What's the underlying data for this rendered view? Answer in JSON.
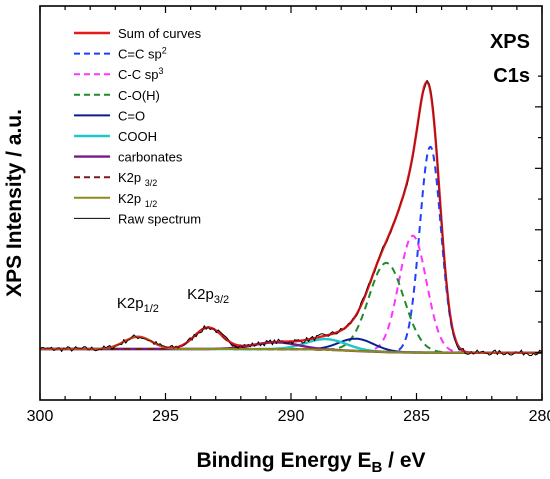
{
  "chart_data": {
    "type": "line",
    "title": "",
    "annotations": [
      "XPS",
      "C1s"
    ],
    "xlabel": "Binding Energy  E",
    "xlabel_sub": "B",
    "xlabel_unit": " / eV",
    "ylabel": "XPS Intensity / a.u.",
    "xlim": [
      300,
      280
    ],
    "x_ticks": [
      "300",
      "295",
      "290",
      "285",
      "280"
    ],
    "x_tick_values": [
      300,
      295,
      290,
      285,
      280
    ],
    "ylim": [
      0,
      1.0
    ],
    "y_ticks": [
      0,
      0.2,
      0.4,
      0.6,
      0.8
    ],
    "y_tick_labels_shown": false,
    "grid": false,
    "legend_position": "top-left",
    "peak_labels": [
      {
        "base": "K2p",
        "sub": "1/2",
        "x": 296.1,
        "y": 0.1
      },
      {
        "base": "K2p",
        "sub": "3/2",
        "x": 293.3,
        "y": 0.13
      }
    ],
    "series": [
      {
        "name": "Sum of curves",
        "color": "#e41a1c",
        "style": "solid",
        "width": 2.4,
        "kind": "sum"
      },
      {
        "name": "C=C sp",
        "sup": "2",
        "color": "#1f3fff",
        "style": "dashed",
        "width": 2,
        "kind": "gauss",
        "center": 284.45,
        "amplitude": 0.67,
        "width_ev": 0.42
      },
      {
        "name": "C-C sp",
        "sup": "3",
        "color": "#ff33ff",
        "style": "dashed",
        "width": 2,
        "kind": "gauss",
        "center": 285.15,
        "amplitude": 0.38,
        "width_ev": 0.55
      },
      {
        "name": "C-O(H)",
        "color": "#1e8c2a",
        "style": "dashed",
        "width": 2,
        "kind": "gauss",
        "center": 286.2,
        "amplitude": 0.29,
        "width_ev": 0.7
      },
      {
        "name": "C=O",
        "color": "#0a1f8f",
        "style": "solid",
        "width": 2,
        "kind": "gauss",
        "center": 287.4,
        "amplitude": 0.04,
        "width_ev": 0.7
      },
      {
        "name": "COOH",
        "color": "#1fc8c8",
        "style": "solid",
        "width": 2.4,
        "kind": "gauss",
        "center": 288.6,
        "amplitude": 0.035,
        "width_ev": 0.8
      },
      {
        "name": "carbonates",
        "color": "#7a1a8a",
        "style": "solid",
        "width": 2.4,
        "kind": "gauss",
        "center": 290.6,
        "amplitude": 0.022,
        "width_ev": 0.9
      },
      {
        "name": "K2p ",
        "sub": "3/2",
        "color": "#7a1a1a",
        "style": "dashed",
        "width": 2,
        "kind": "gauss",
        "center": 293.3,
        "amplitude": 0.07,
        "width_ev": 0.55
      },
      {
        "name": "K2p ",
        "sub": "1/2",
        "color": "#8c8c1a",
        "style": "solid",
        "width": 2,
        "kind": "gauss",
        "center": 296.1,
        "amplitude": 0.04,
        "width_ev": 0.55
      },
      {
        "name": "Raw spectrum",
        "color": "#000000",
        "style": "solid",
        "width": 1,
        "kind": "raw"
      }
    ]
  }
}
